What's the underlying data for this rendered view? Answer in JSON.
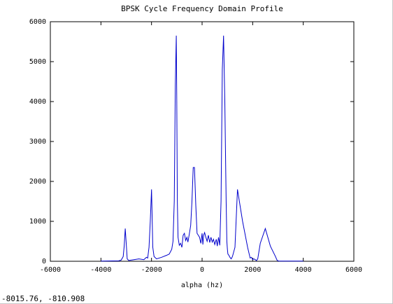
{
  "status": {
    "coordinate_readout": "-8015.76, -810.908"
  },
  "colors": {
    "series": "#0000cc",
    "axes": "#000000",
    "background": "#ffffff"
  },
  "chart_data": {
    "type": "line",
    "title": "BPSK Cycle Frequency Domain Profile",
    "xlabel": "alpha (hz)",
    "ylabel": "",
    "xlim": [
      -6000,
      6000
    ],
    "ylim": [
      0,
      6000
    ],
    "xticks": [
      -6000,
      -4000,
      -2000,
      0,
      2000,
      4000,
      6000
    ],
    "yticks": [
      0,
      1000,
      2000,
      3000,
      4000,
      5000,
      6000
    ],
    "grid": false,
    "legend": "none",
    "series": [
      {
        "name": "",
        "x": [
          -4000,
          -3300,
          -3200,
          -3120,
          -3080,
          -3040,
          -3000,
          -2960,
          -2900,
          -2700,
          -2500,
          -2300,
          -2200,
          -2150,
          -2100,
          -2050,
          -2000,
          -1950,
          -1900,
          -1800,
          -1600,
          -1400,
          -1300,
          -1200,
          -1150,
          -1100,
          -1060,
          -1020,
          -1000,
          -980,
          -950,
          -900,
          -850,
          -800,
          -750,
          -700,
          -650,
          -600,
          -560,
          -500,
          -450,
          -400,
          -350,
          -300,
          -250,
          -200,
          -150,
          -100,
          -50,
          0,
          30,
          60,
          100,
          150,
          200,
          250,
          300,
          350,
          400,
          450,
          500,
          560,
          600,
          650,
          700,
          750,
          800,
          850,
          900,
          950,
          980,
          1000,
          1020,
          1060,
          1100,
          1150,
          1200,
          1300,
          1400,
          1600,
          1800,
          1900,
          1950,
          2000,
          2050,
          2100,
          2150,
          2200,
          2300,
          2500,
          2700,
          2900,
          2960,
          3000,
          3040,
          3080,
          3120,
          3200,
          3300,
          4000
        ],
        "values": [
          5,
          10,
          30,
          120,
          380,
          820,
          450,
          60,
          20,
          40,
          60,
          40,
          100,
          80,
          350,
          1000,
          1800,
          350,
          120,
          60,
          100,
          150,
          180,
          300,
          500,
          1500,
          4400,
          5650,
          4000,
          1500,
          600,
          400,
          450,
          350,
          650,
          700,
          520,
          600,
          480,
          700,
          900,
          1500,
          2350,
          2350,
          1400,
          700,
          650,
          600,
          450,
          700,
          420,
          650,
          720,
          600,
          500,
          650,
          470,
          600,
          480,
          550,
          420,
          550,
          380,
          600,
          400,
          1500,
          4800,
          5650,
          4000,
          1500,
          500,
          300,
          180,
          150,
          100,
          60,
          120,
          350,
          1800,
          1000,
          350,
          80,
          100,
          40,
          60,
          40,
          20,
          60,
          450,
          820,
          380,
          120,
          30,
          10,
          5,
          5,
          5,
          5,
          5,
          5
        ]
      }
    ]
  }
}
